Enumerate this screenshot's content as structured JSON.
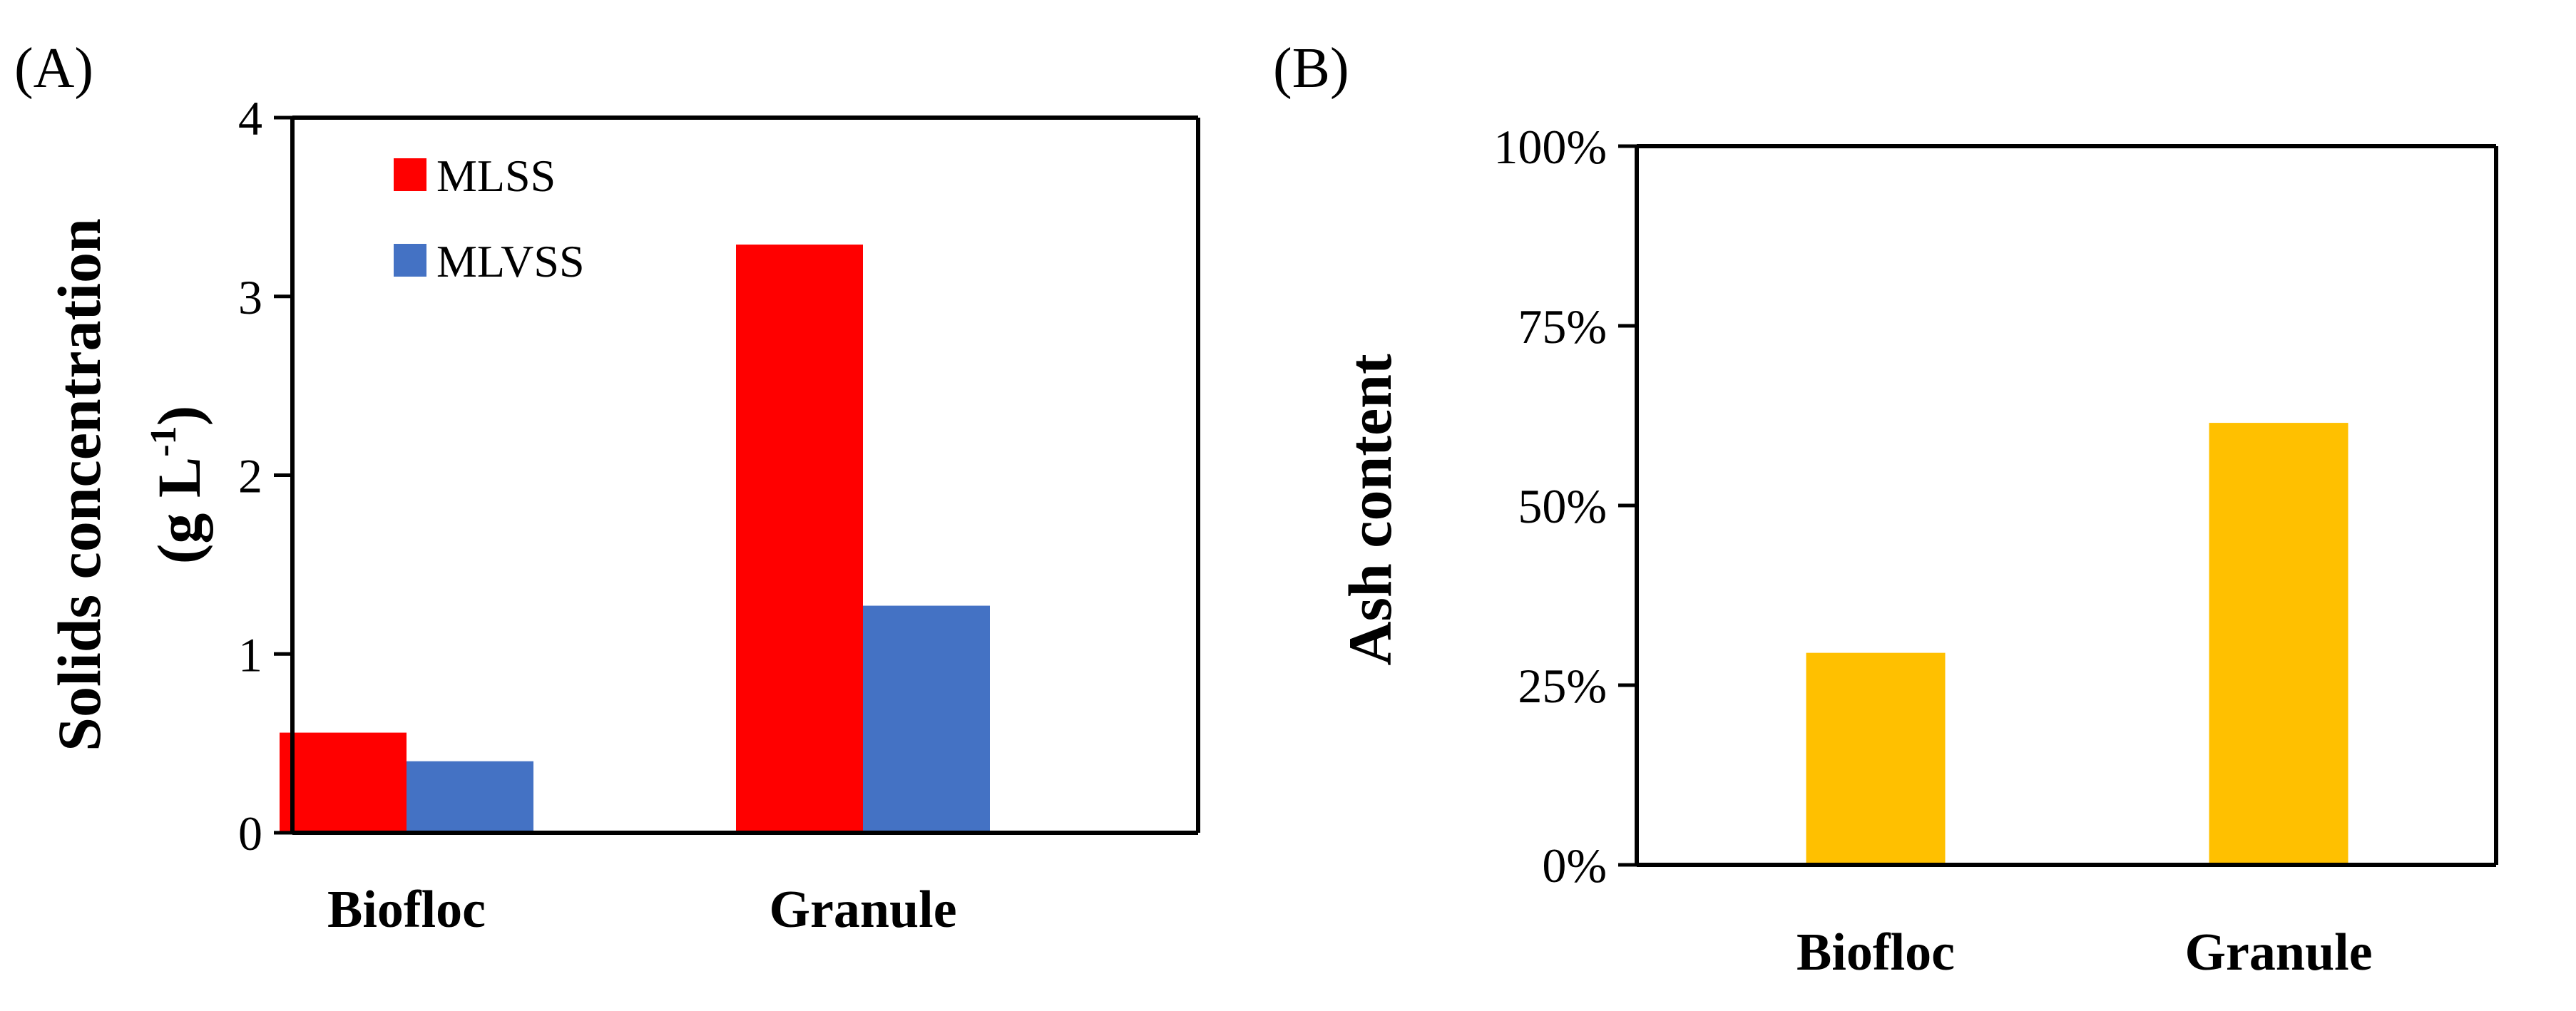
{
  "chart_data": [
    {
      "panel_label": "(A)",
      "type": "bar",
      "categories": [
        "Biofloc",
        "Granule"
      ],
      "series": [
        {
          "name": "MLSS",
          "values": [
            0.56,
            3.29
          ],
          "color": "#ff0000"
        },
        {
          "name": "MLVSS",
          "values": [
            0.4,
            1.27
          ],
          "color": "#4472c4"
        }
      ],
      "ylabel_line1": "Solids concentration",
      "ylabel_line2_prefix": "(g L",
      "ylabel_line2_sup": "-1",
      "ylabel_line2_suffix": ")",
      "ylim": [
        0,
        4
      ],
      "yticks": [
        0,
        1,
        2,
        3,
        4
      ],
      "ytick_labels": [
        "0",
        "1",
        "2",
        "3",
        "4"
      ],
      "legend_placement": "top-left",
      "grid": false
    },
    {
      "panel_label": "(B)",
      "type": "bar",
      "categories": [
        "Biofloc",
        "Granule"
      ],
      "series": [
        {
          "values": [
            29.5,
            61.5
          ],
          "color": "#ffc000"
        }
      ],
      "ylabel": "Ash content",
      "ylim": [
        0,
        100
      ],
      "yticks": [
        0,
        25,
        50,
        75,
        100
      ],
      "ytick_labels": [
        "0%",
        "25%",
        "50%",
        "75%",
        "100%"
      ],
      "grid": false
    }
  ]
}
